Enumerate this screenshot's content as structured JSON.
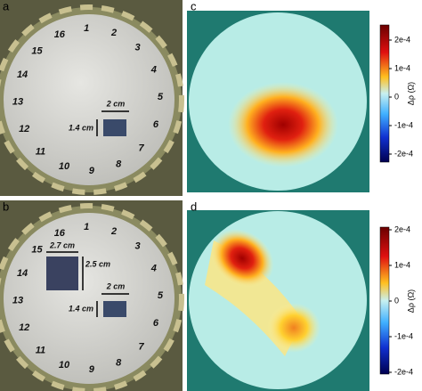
{
  "panels": {
    "a": {
      "label": "a",
      "electrodes": [
        "1",
        "2",
        "3",
        "4",
        "5",
        "6",
        "7",
        "8",
        "9",
        "10",
        "11",
        "12",
        "13",
        "14",
        "15",
        "16"
      ],
      "dimensions": [
        "2 cm",
        "1.4 cm"
      ]
    },
    "b": {
      "label": "b",
      "electrodes": [
        "1",
        "2",
        "3",
        "4",
        "5",
        "6",
        "7",
        "8",
        "9",
        "10",
        "11",
        "12",
        "13",
        "14",
        "15",
        "16"
      ],
      "dimensions": [
        "2.7 cm",
        "2.5 cm",
        "2 cm",
        "1.4 cm"
      ]
    },
    "c": {
      "label": "c",
      "colorbar": {
        "ticks": [
          "2e-4",
          "1e-4",
          "0",
          "-1e-4",
          "-2e-4"
        ],
        "label": "Δρ (Ω)"
      }
    },
    "d": {
      "label": "d",
      "colorbar": {
        "ticks": [
          "2e-4",
          "1e-4",
          "0",
          "-1e-4",
          "-2e-4"
        ],
        "label": "Δρ (Ω)"
      }
    }
  }
}
